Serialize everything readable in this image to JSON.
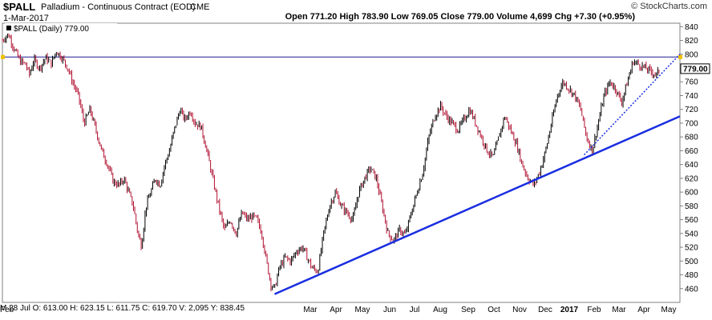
{
  "header": {
    "symbol": "$PALL",
    "name": "Palladium - Continuous Contract (EOD)",
    "exchange": "CME",
    "date": "1-Mar-2017",
    "copyright": "© StockCharts.com",
    "quote_prefix": "Open 771.20",
    "quote_high": "High 783.90",
    "quote_low": "Low 769.05",
    "quote_close": "Close 779.00",
    "quote_volume": "Volume 4,699",
    "quote_change": "Chg +7.30 (+0.95%)"
  },
  "legend": {
    "text": "$PALL (Daily) 779.00"
  },
  "hover_readout": "M 28 Jul O: 613.00  H: 623.15  L: 611.75  C: 619.70  V: 2,095  Y: 838.45",
  "chart_data": {
    "type": "candlestick",
    "series_name": "$PALL (Daily)",
    "last_value": 779.0,
    "last_value_label": "779.00",
    "ylim": [
      440,
      845
    ],
    "y_ticks": [
      460,
      480,
      500,
      520,
      540,
      560,
      580,
      600,
      620,
      640,
      660,
      680,
      700,
      720,
      740,
      760,
      780,
      800,
      820,
      840
    ],
    "y_tick_labels": [
      "460",
      "480",
      "500",
      "520",
      "540",
      "560",
      "580",
      "600",
      "620",
      "640",
      "660",
      "680",
      "700",
      "720",
      "740",
      "760",
      "780",
      "800",
      "820",
      "840"
    ],
    "x_tick_labels": [
      "Feb",
      "Mar",
      "Apr",
      "May",
      "Jun",
      "Jul",
      "Aug",
      "Sep",
      "Oct",
      "Nov",
      "Dec",
      "2017",
      "Feb",
      "Mar",
      "Apr",
      "May"
    ],
    "horizontal_line": 796,
    "price_path": [
      [
        0,
        820
      ],
      [
        0.5,
        830
      ],
      [
        1,
        808
      ],
      [
        1.5,
        790
      ],
      [
        2,
        785
      ],
      [
        2.3,
        770
      ],
      [
        2.7,
        792
      ],
      [
        3.2,
        780
      ],
      [
        3.7,
        795
      ],
      [
        4.2,
        786
      ],
      [
        4.6,
        805
      ],
      [
        5.1,
        795
      ],
      [
        5.6,
        780
      ],
      [
        6,
        760
      ],
      [
        6.5,
        740
      ],
      [
        7,
        700
      ],
      [
        7.5,
        720
      ],
      [
        8,
        690
      ],
      [
        8.5,
        660
      ],
      [
        9,
        640
      ],
      [
        9.5,
        615
      ],
      [
        10,
        610
      ],
      [
        10.4,
        620
      ],
      [
        10.8,
        600
      ],
      [
        11.2,
        580
      ],
      [
        11.6,
        540
      ],
      [
        11.9,
        522
      ],
      [
        12.3,
        580
      ],
      [
        12.7,
        600
      ],
      [
        13.1,
        620
      ],
      [
        13.5,
        610
      ],
      [
        13.9,
        640
      ],
      [
        14.3,
        660
      ],
      [
        14.7,
        690
      ],
      [
        15.2,
        720
      ],
      [
        15.6,
        705
      ],
      [
        16.1,
        718
      ],
      [
        16.5,
        700
      ],
      [
        17,
        695
      ],
      [
        17.5,
        660
      ],
      [
        18,
        620
      ],
      [
        18.5,
        580
      ],
      [
        19,
        545
      ],
      [
        19.5,
        560
      ],
      [
        20,
        540
      ],
      [
        20.5,
        570
      ],
      [
        21,
        560
      ],
      [
        21.4,
        565
      ],
      [
        21.8,
        560
      ],
      [
        22.2,
        540
      ],
      [
        22.6,
        500
      ],
      [
        23,
        465
      ],
      [
        23.3,
        460
      ],
      [
        23.7,
        490
      ],
      [
        24.2,
        505
      ],
      [
        24.7,
        500
      ],
      [
        25.2,
        515
      ],
      [
        25.7,
        520
      ],
      [
        26.1,
        505
      ],
      [
        26.5,
        490
      ],
      [
        27,
        485
      ],
      [
        27.5,
        540
      ],
      [
        28,
        580
      ],
      [
        28.5,
        600
      ],
      [
        29,
        580
      ],
      [
        29.5,
        570
      ],
      [
        30,
        560
      ],
      [
        30.5,
        600
      ],
      [
        31,
        620
      ],
      [
        31.5,
        635
      ],
      [
        32,
        620
      ],
      [
        32.5,
        580
      ],
      [
        33,
        540
      ],
      [
        33.5,
        530
      ],
      [
        34,
        545
      ],
      [
        34.5,
        538
      ],
      [
        35,
        570
      ],
      [
        35.5,
        600
      ],
      [
        36,
        630
      ],
      [
        36.5,
        680
      ],
      [
        37,
        710
      ],
      [
        37.5,
        725
      ],
      [
        38,
        710
      ],
      [
        38.5,
        700
      ],
      [
        39,
        690
      ],
      [
        39.5,
        705
      ],
      [
        40,
        720
      ],
      [
        40.5,
        700
      ],
      [
        41,
        680
      ],
      [
        41.5,
        660
      ],
      [
        42,
        650
      ],
      [
        42.5,
        680
      ],
      [
        43,
        710
      ],
      [
        43.5,
        690
      ],
      [
        44,
        670
      ],
      [
        44.5,
        640
      ],
      [
        45,
        620
      ],
      [
        45.5,
        610
      ],
      [
        46,
        630
      ],
      [
        46.5,
        660
      ],
      [
        47,
        700
      ],
      [
        47.5,
        740
      ],
      [
        48,
        760
      ],
      [
        48.5,
        750
      ],
      [
        49,
        740
      ],
      [
        49.5,
        720
      ],
      [
        50,
        680
      ],
      [
        50.5,
        660
      ],
      [
        51,
        700
      ],
      [
        51.5,
        740
      ],
      [
        52,
        760
      ],
      [
        52.5,
        750
      ],
      [
        53,
        730
      ],
      [
        53.5,
        760
      ],
      [
        54,
        790
      ],
      [
        54.5,
        785
      ],
      [
        55,
        780
      ],
      [
        55.5,
        775
      ],
      [
        56,
        770
      ],
      [
        56.3,
        779
      ]
    ],
    "trendlines": [
      {
        "style": "solid",
        "from": [
          23.3,
          452
        ],
        "to": [
          58,
          710
        ]
      },
      {
        "style": "dotted",
        "from": [
          49.8,
          654
        ],
        "to": [
          58,
          800
        ]
      }
    ],
    "x_domain": [
      0,
      58
    ]
  }
}
